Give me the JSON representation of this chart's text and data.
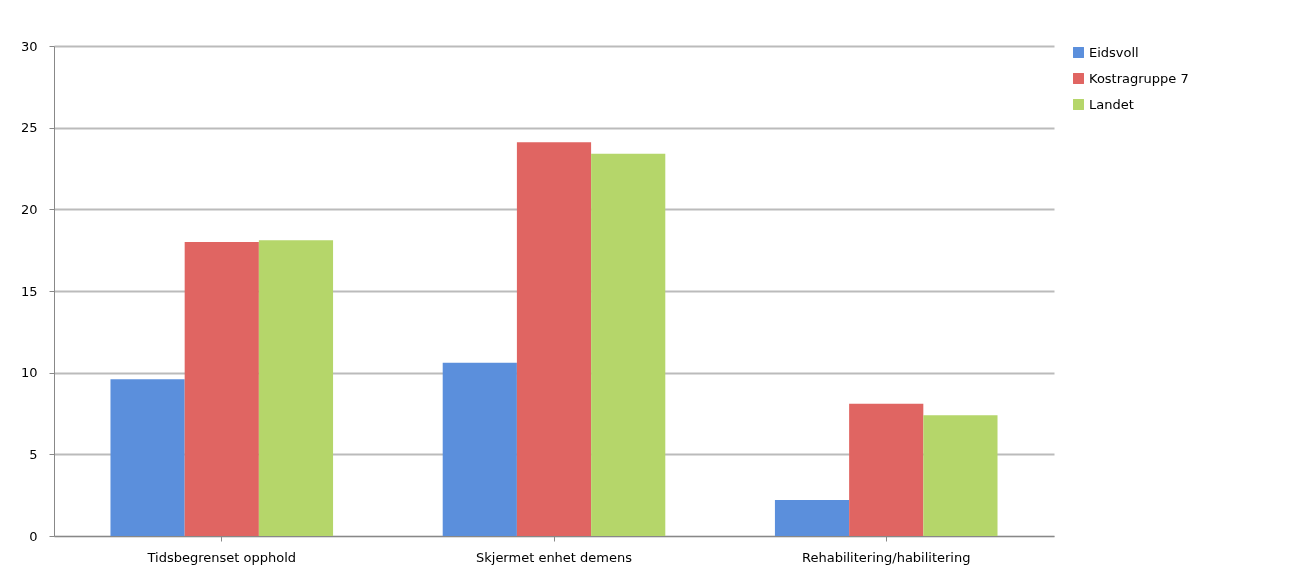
{
  "chart_data": {
    "type": "bar",
    "categories": [
      "Tidsbegrenset opphold",
      "Skjermet enhet demens",
      "Rehabilitering/habilitering"
    ],
    "series": [
      {
        "name": "Eidsvoll",
        "color": "#5b8fdc",
        "values": [
          9.6,
          10.6,
          2.2
        ]
      },
      {
        "name": "Kostragruppe 7",
        "color": "#e06562",
        "values": [
          18,
          24.1,
          8.1
        ]
      },
      {
        "name": "Landet",
        "color": "#b5d66a",
        "values": [
          18.1,
          23.4,
          7.4
        ]
      }
    ],
    "ylim": [
      0,
      30
    ],
    "yticks": [
      0,
      5,
      10,
      15,
      20,
      25,
      30
    ],
    "grid": "y",
    "legend": "right"
  }
}
